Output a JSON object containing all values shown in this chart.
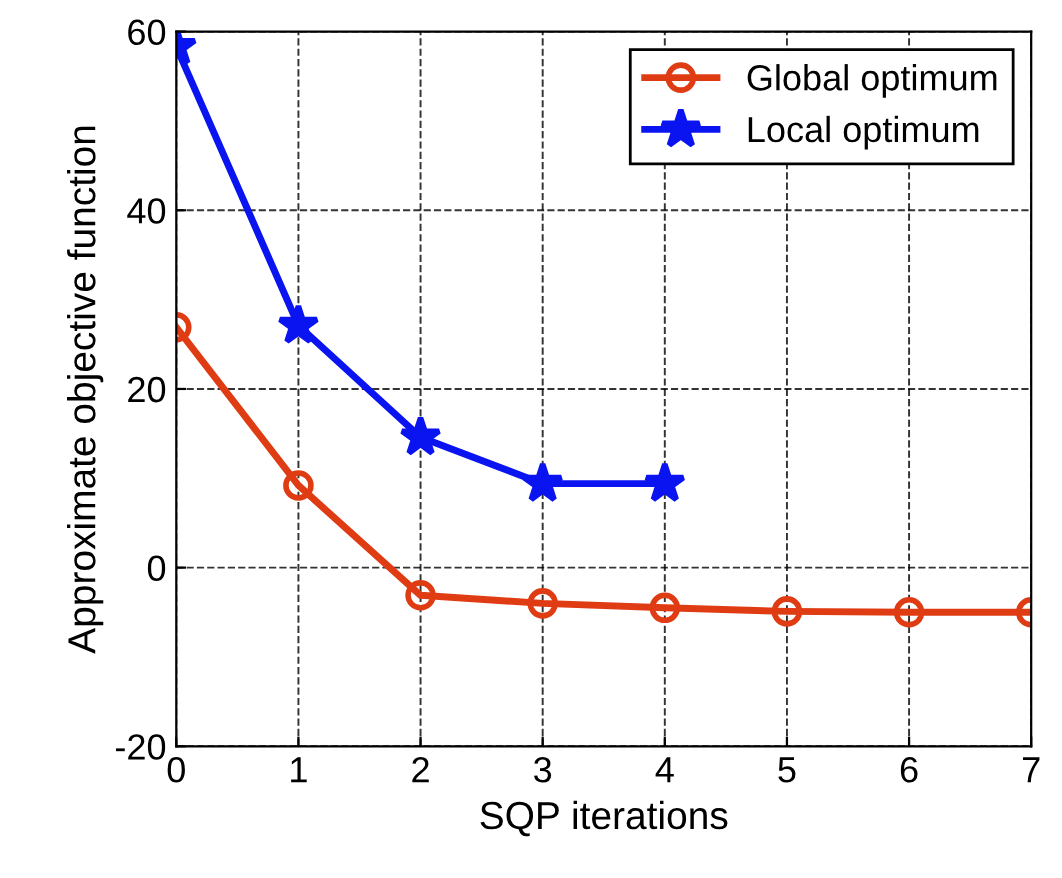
{
  "chart_data": {
    "type": "line",
    "xlabel": "SQP iterations",
    "ylabel": "Approximate objective function",
    "xlim": [
      0,
      7
    ],
    "xticks": [
      0,
      1,
      2,
      3,
      4,
      5,
      6,
      7
    ],
    "ylim": [
      -20,
      60
    ],
    "yticks": [
      -20,
      0,
      20,
      40,
      60
    ],
    "grid": true,
    "legend": "top right",
    "series": [
      {
        "name": "Global optimum",
        "color": "#e03c14",
        "marker": "circle",
        "x": [
          0,
          1,
          2,
          3,
          4,
          5,
          6,
          7
        ],
        "values": [
          26.9,
          9.2,
          -3.1,
          -4.0,
          -4.5,
          -4.9,
          -5.0,
          -5.0
        ]
      },
      {
        "name": "Local optimum",
        "color": "#0a14f0",
        "marker": "star",
        "x": [
          0,
          1,
          2,
          3,
          4
        ],
        "values": [
          58.3,
          27.1,
          14.6,
          9.4,
          9.4
        ]
      }
    ]
  }
}
